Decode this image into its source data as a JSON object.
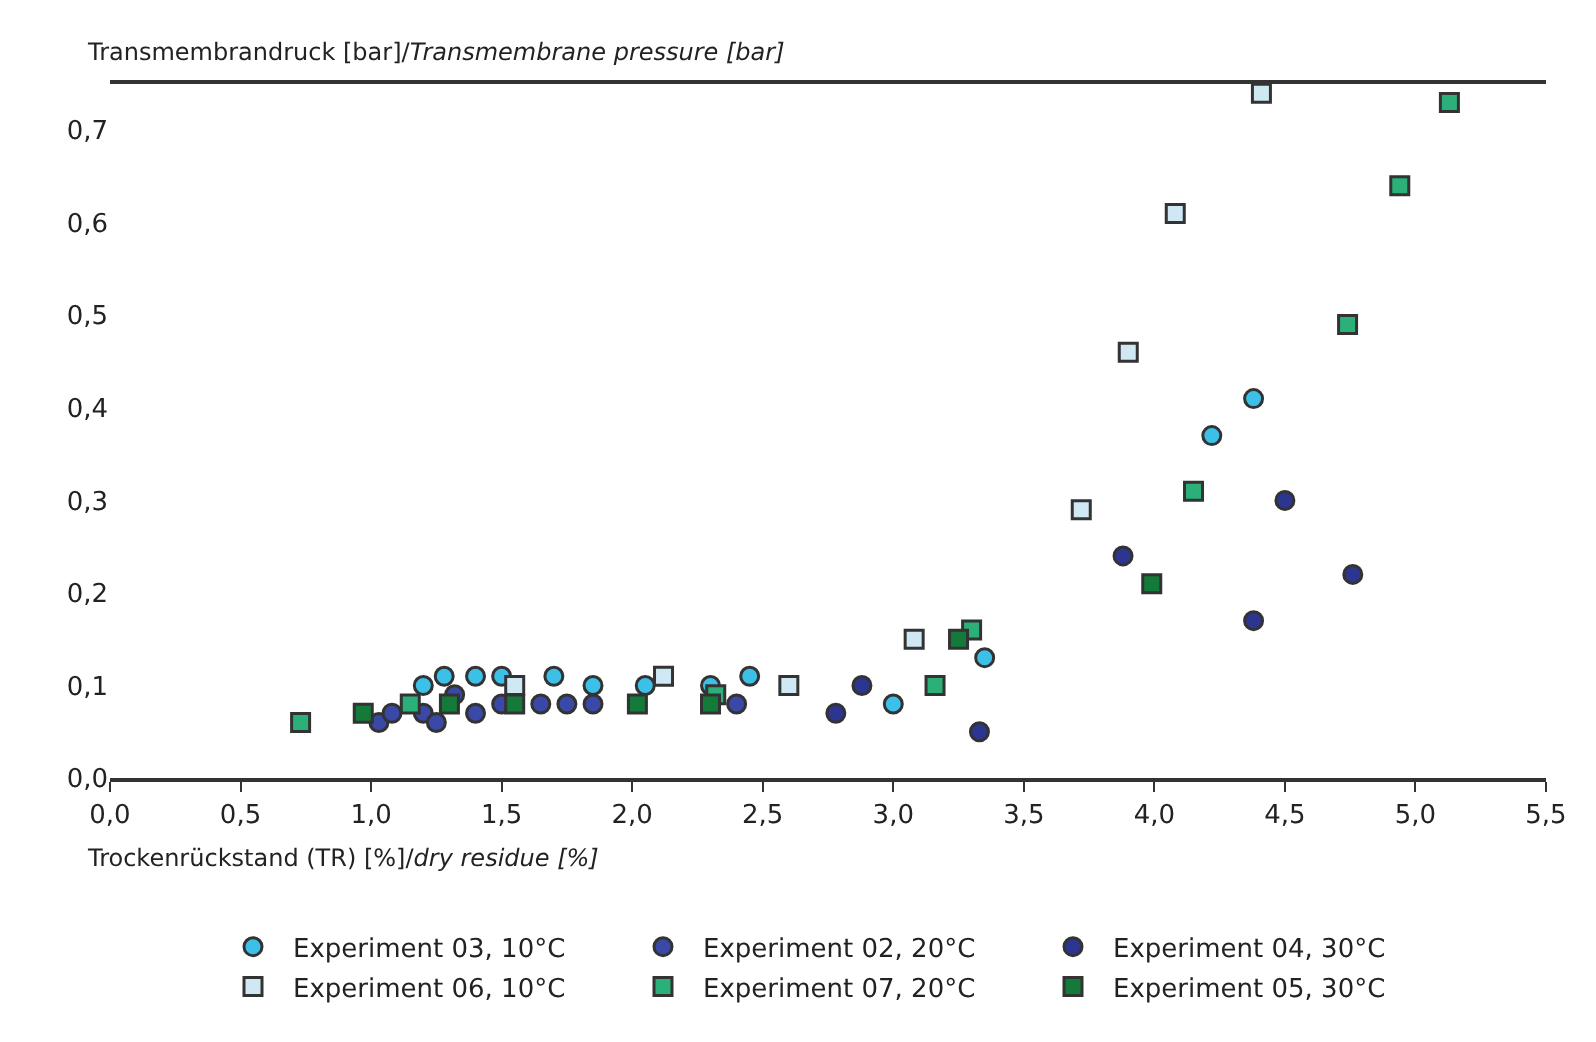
{
  "chart_data": {
    "type": "scatter",
    "ylabel": "Transmembrandruck [bar]/Transmembrane pressure [bar]",
    "xlabel": "Trockenrückstand (TR) [%]/dry residue [%]",
    "xlim": [
      0,
      5.5
    ],
    "xticks": [
      {
        "value": 0,
        "label": "0,0"
      },
      {
        "value": 0.5,
        "label": "0,5"
      },
      {
        "value": 1,
        "label": "1,0"
      },
      {
        "value": 1.5,
        "label": "1,5"
      },
      {
        "value": 2,
        "label": "2,0"
      },
      {
        "value": 2.5,
        "label": "2,5"
      },
      {
        "value": 3,
        "label": "3,0"
      },
      {
        "value": 3.5,
        "label": "3,5"
      },
      {
        "value": 4,
        "label": "4,0"
      },
      {
        "value": 4.5,
        "label": "4,5"
      },
      {
        "value": 5,
        "label": "5,0"
      },
      {
        "value": 5.5,
        "label": "5,5"
      }
    ],
    "ylim": [
      0,
      0.75
    ],
    "yticks": [
      {
        "value": 0,
        "label": "0,0"
      },
      {
        "value": 0.1,
        "label": "0,1"
      },
      {
        "value": 0.2,
        "label": "0,2"
      },
      {
        "value": 0.3,
        "label": "0,3"
      },
      {
        "value": 0.4,
        "label": "0,4"
      },
      {
        "value": 0.5,
        "label": "0,5"
      },
      {
        "value": 0.6,
        "label": "0,6"
      },
      {
        "value": 0.7,
        "label": "0,7"
      }
    ],
    "legend": "bottom",
    "series": [
      {
        "name": "Experiment 03, 10°C",
        "color": "#3cc0e8",
        "marker": "circle",
        "x": [
          1.2,
          1.28,
          1.4,
          1.5,
          1.7,
          1.85,
          2.05,
          2.3,
          2.45,
          3.0,
          3.35,
          4.22,
          4.38
        ],
        "values": [
          0.1,
          0.11,
          0.11,
          0.11,
          0.11,
          0.1,
          0.1,
          0.1,
          0.11,
          0.08,
          0.13,
          0.37,
          0.41
        ]
      },
      {
        "name": "Experiment 02, 20°C",
        "color": "#3a48a8",
        "marker": "circle",
        "x": [
          1.03,
          1.08,
          1.15,
          1.2,
          1.25,
          1.3,
          1.32,
          1.4,
          1.5,
          1.65,
          1.75,
          1.85,
          2.3,
          2.4
        ],
        "values": [
          0.06,
          0.07,
          null,
          0.07,
          0.06,
          null,
          0.09,
          0.07,
          0.08,
          0.08,
          0.08,
          0.08,
          null,
          0.08
        ]
      },
      {
        "name": "Experiment 04, 30°C",
        "color": "#2c3590",
        "marker": "circle",
        "x": [
          2.78,
          2.88,
          3.33,
          3.88,
          4.38,
          4.5,
          4.76
        ],
        "values": [
          0.07,
          0.1,
          0.05,
          0.24,
          0.17,
          0.3,
          0.22
        ]
      },
      {
        "name": "Experiment 06, 10°C",
        "color": "#cfe8f4",
        "marker": "square",
        "x": [
          1.55,
          2.12,
          2.6,
          3.08,
          3.72,
          3.9,
          4.08,
          4.41
        ],
        "values": [
          0.1,
          0.11,
          0.1,
          0.15,
          0.29,
          0.46,
          0.61,
          0.74
        ]
      },
      {
        "name": "Experiment 07, 20°C",
        "color": "#2bb07a",
        "marker": "square",
        "x": [
          0.73,
          1.15,
          1.28,
          1.58,
          2.32,
          3.16,
          3.3,
          4.15,
          4.74,
          4.94,
          5.13
        ],
        "values": [
          0.06,
          0.08,
          null,
          null,
          0.09,
          0.1,
          0.16,
          0.31,
          0.49,
          0.64,
          0.73
        ]
      },
      {
        "name": "Experiment 05, 30°C",
        "color": "#137a3a",
        "marker": "square",
        "x": [
          0.97,
          1.3,
          1.55,
          2.02,
          2.3,
          3.25,
          3.99
        ],
        "values": [
          0.07,
          0.08,
          0.08,
          0.08,
          0.08,
          0.15,
          0.21
        ]
      }
    ]
  }
}
